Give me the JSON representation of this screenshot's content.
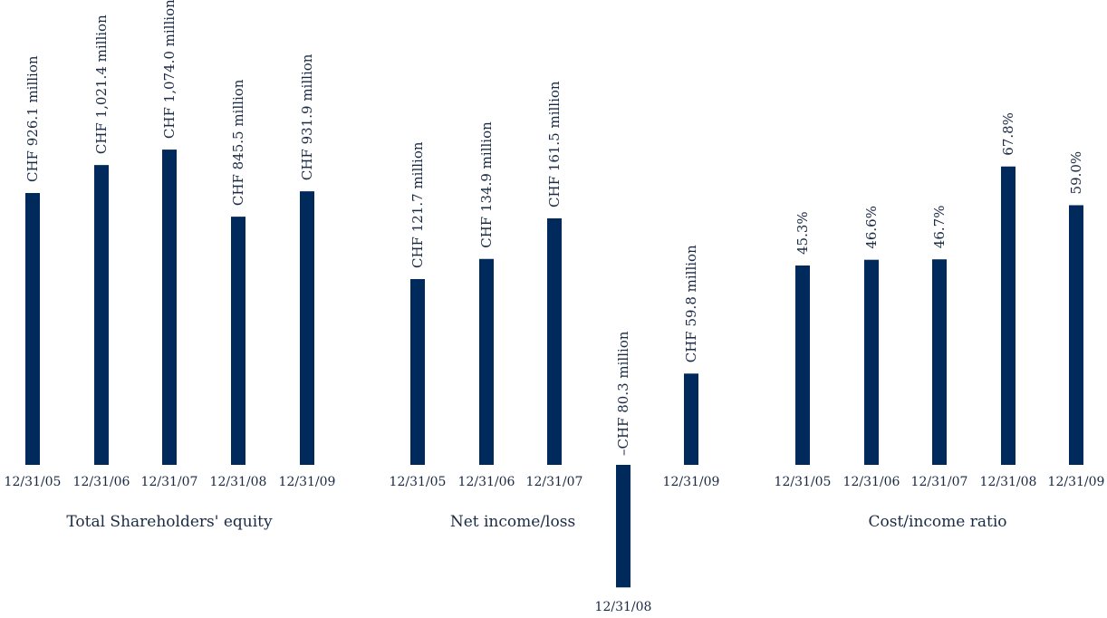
{
  "colors": {
    "bar": "#002a5c",
    "text": "#1a2a44",
    "background": "#ffffff"
  },
  "chart_data": [
    {
      "type": "bar",
      "title": "Total Shareholders' equity",
      "categories": [
        "12/31/05",
        "12/31/06",
        "12/31/07",
        "12/31/08",
        "12/31/09"
      ],
      "values": [
        926.1,
        1021.4,
        1074.0,
        845.5,
        931.9
      ],
      "labels": [
        "CHF 926.1  million",
        "CHF 1,021.4  million",
        "CHF 1,074.0  million",
        "CHF 845.5  million",
        "CHF 931.9  million"
      ]
    },
    {
      "type": "bar",
      "title": "Net income/loss",
      "categories": [
        "12/31/05",
        "12/31/06",
        "12/31/07",
        "12/31/08",
        "12/31/09"
      ],
      "values": [
        121.7,
        134.9,
        161.5,
        -80.3,
        59.8
      ],
      "labels": [
        "CHF 121.7  million",
        "CHF 134.9  million",
        "CHF 161.5  million",
        "–CHF 80.3 million",
        "CHF 59.8  million"
      ]
    },
    {
      "type": "bar",
      "title": "Cost/income ratio",
      "categories": [
        "12/31/05",
        "12/31/06",
        "12/31/07",
        "12/31/08",
        "12/31/09"
      ],
      "values": [
        45.3,
        46.6,
        46.7,
        67.8,
        59.0
      ],
      "labels": [
        "45.3%",
        "46.6%",
        "46.7%",
        "67.8%",
        "59.0%"
      ]
    }
  ]
}
